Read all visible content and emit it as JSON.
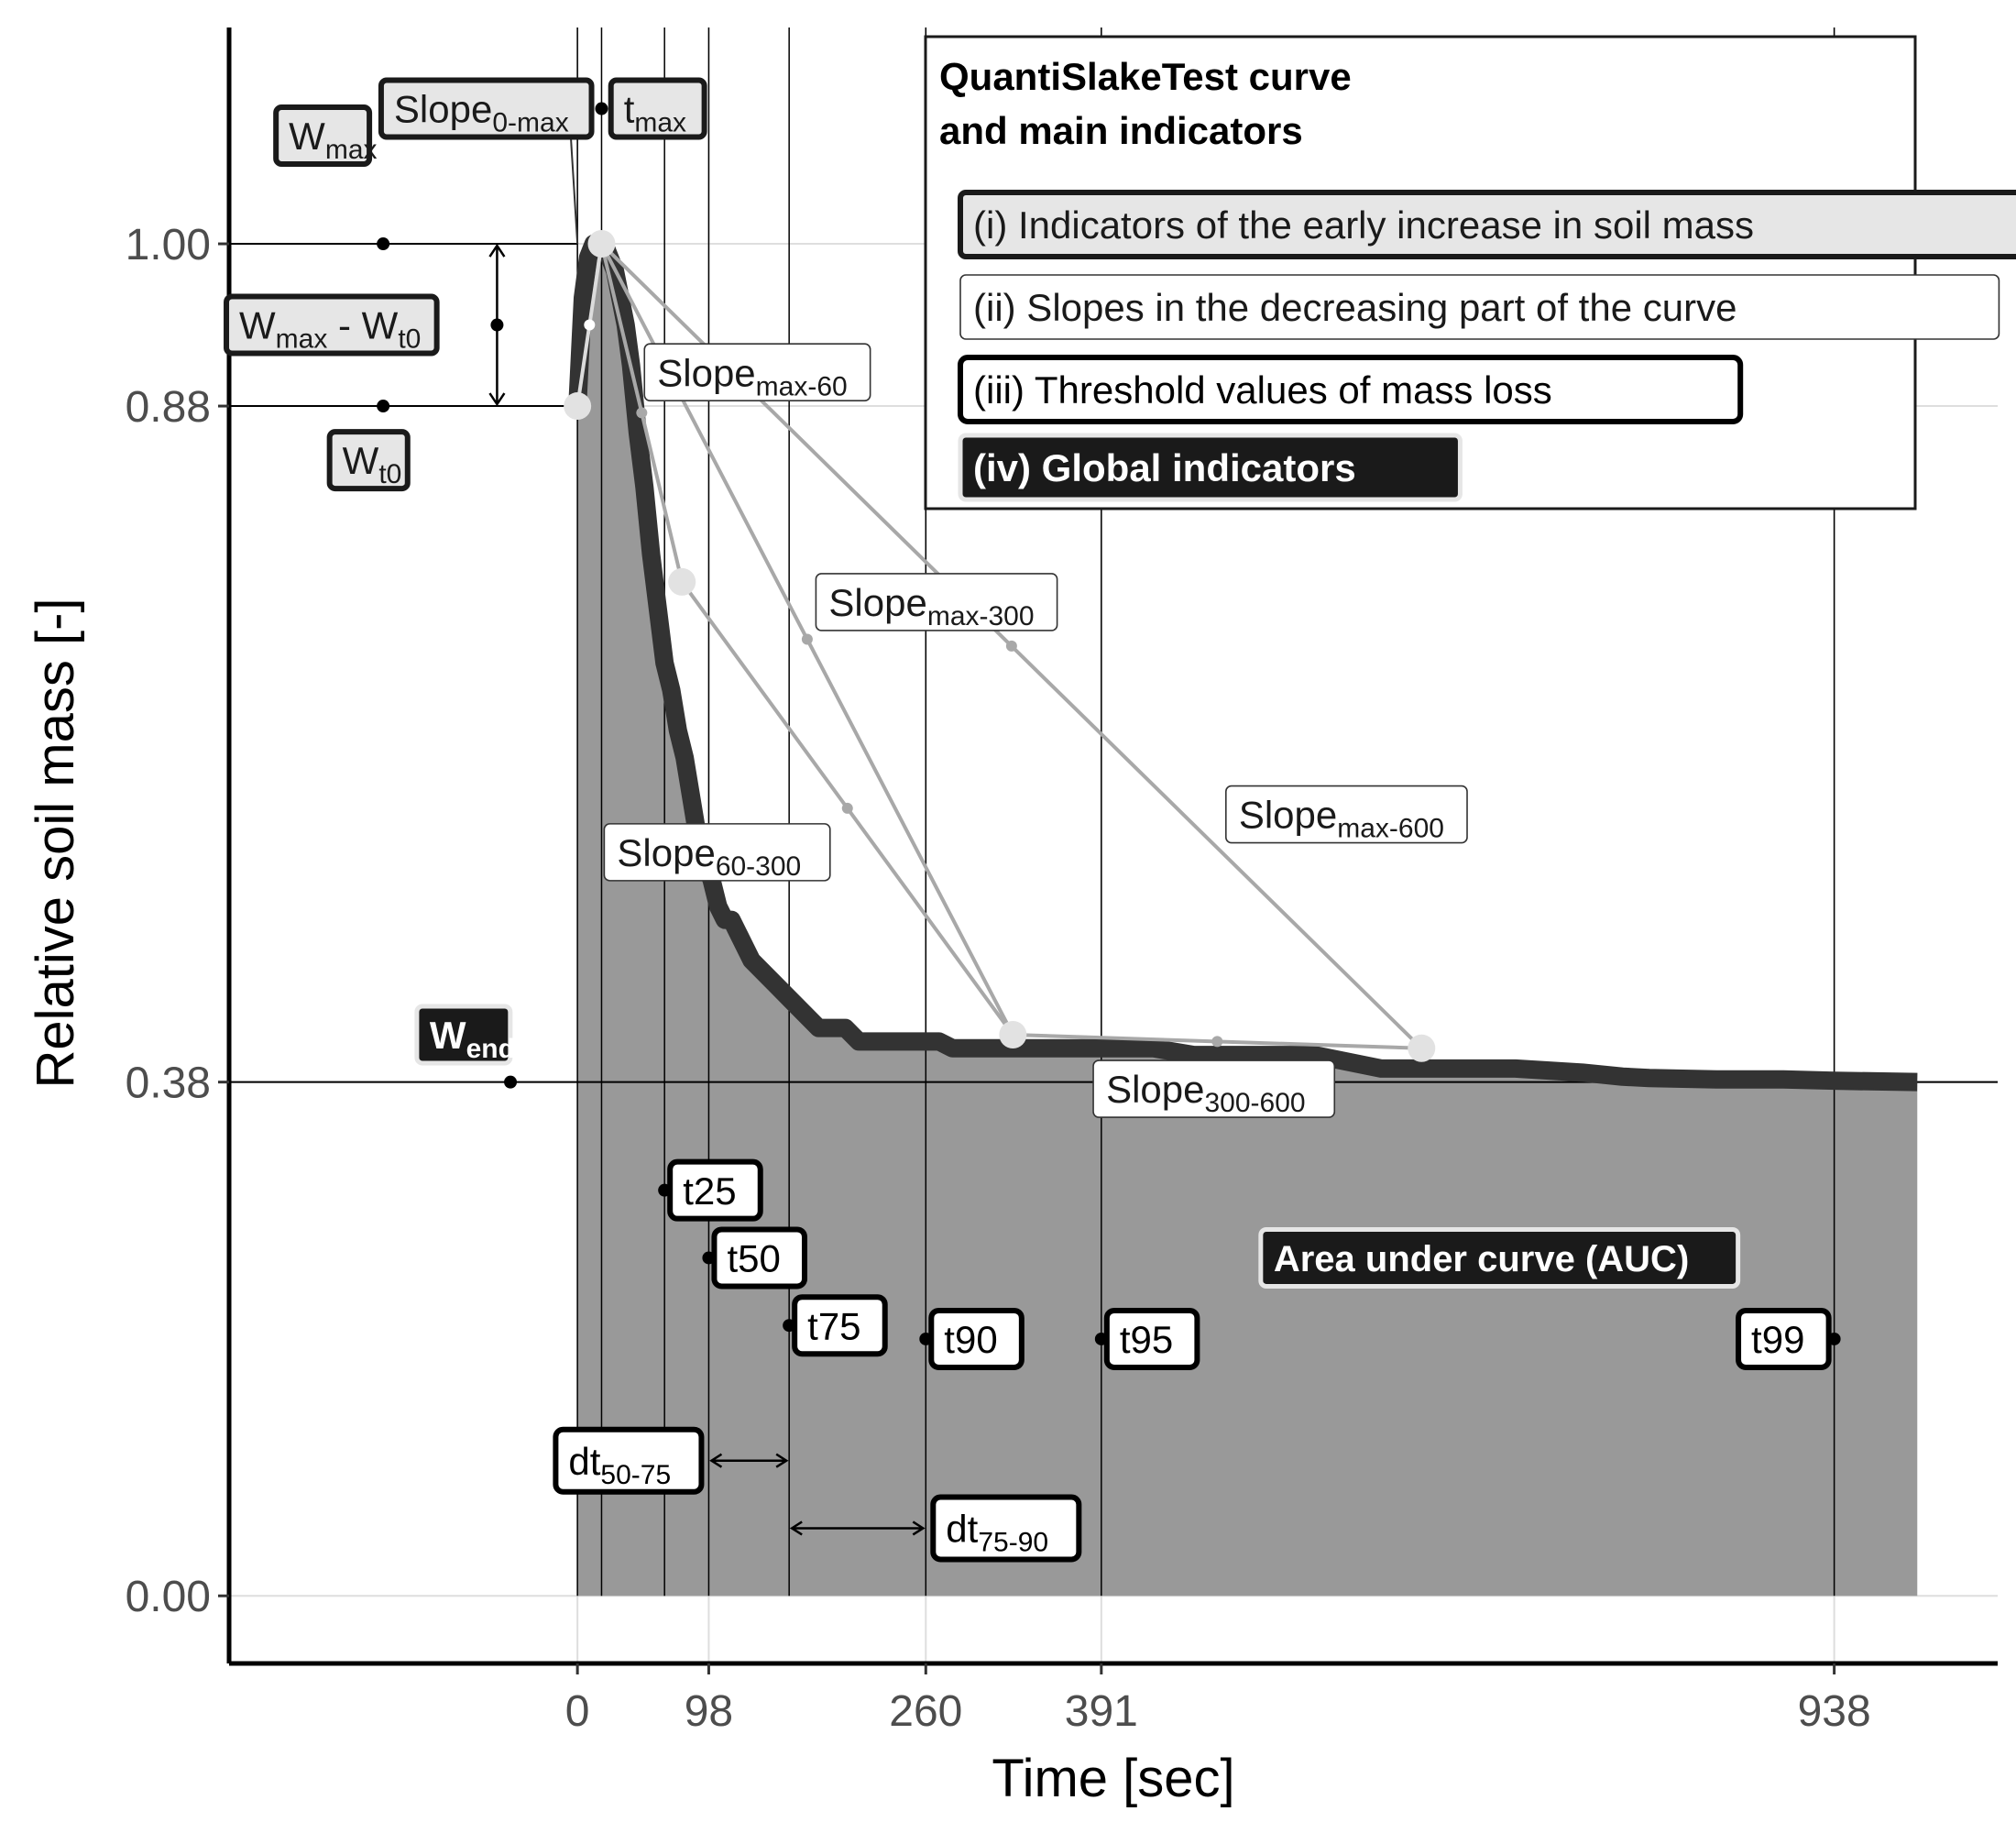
{
  "chart_data": {
    "type": "area",
    "xlabel": "Time [sec]",
    "ylabel": "Relative soil mass [-]",
    "x_ticks": [
      "0",
      "98",
      "260",
      "391",
      "938"
    ],
    "y_ticks": [
      "0.00",
      "0.38",
      "0.88",
      "1.00"
    ],
    "xlim": [
      -260,
      1060
    ],
    "ylim": [
      -0.05,
      1.16
    ],
    "grid": true,
    "curve": {
      "x": [
        0,
        4,
        8,
        12,
        16,
        20,
        24,
        28,
        32,
        36,
        40,
        45,
        50,
        55,
        60,
        65,
        70,
        75,
        80,
        85,
        90,
        95,
        100,
        105,
        110,
        115,
        120,
        125,
        130,
        140,
        150,
        160,
        170,
        180,
        190,
        200,
        210,
        220,
        230,
        240,
        250,
        260,
        270,
        280,
        290,
        300,
        320,
        340,
        360,
        380,
        400,
        430,
        460,
        500,
        550,
        600,
        650,
        700,
        750,
        780,
        800,
        850,
        900,
        938,
        1000
      ],
      "y": [
        0.88,
        0.96,
        0.99,
        1.0,
        1.0,
        1.0,
        0.99,
        0.98,
        0.96,
        0.94,
        0.91,
        0.86,
        0.82,
        0.77,
        0.73,
        0.69,
        0.67,
        0.64,
        0.62,
        0.59,
        0.56,
        0.54,
        0.53,
        0.51,
        0.5,
        0.5,
        0.49,
        0.48,
        0.47,
        0.46,
        0.45,
        0.44,
        0.43,
        0.42,
        0.42,
        0.42,
        0.41,
        0.41,
        0.41,
        0.41,
        0.41,
        0.41,
        0.41,
        0.405,
        0.405,
        0.405,
        0.405,
        0.405,
        0.405,
        0.405,
        0.405,
        0.405,
        0.4,
        0.4,
        0.4,
        0.39,
        0.39,
        0.39,
        0.387,
        0.384,
        0.383,
        0.382,
        0.382,
        0.381,
        0.38
      ]
    },
    "auc_label": "Area under curve (AUC)",
    "legend": {
      "title_lines": [
        "QuantiSlakeTest curve",
        "and main indicators"
      ],
      "entries": [
        "(i) Indicators of the early increase in soil mass",
        "(ii) Slopes in the decreasing part of the curve",
        "(iii) Threshold values of mass loss",
        "(iv) Global indicators"
      ]
    },
    "key_points": [
      {
        "name": "t0",
        "x": 0,
        "y": 0.88
      },
      {
        "name": "tmax",
        "x": 18,
        "y": 1.0
      },
      {
        "name": "t60",
        "x": 78,
        "y": 0.75
      },
      {
        "name": "t300",
        "x": 325,
        "y": 0.415
      },
      {
        "name": "t600",
        "x": 630,
        "y": 0.405
      }
    ],
    "slopes": [
      {
        "from": "t0",
        "to": "tmax",
        "main": "Slope",
        "sub": "0-max"
      },
      {
        "from": "tmax",
        "to": "t60",
        "main": "Slope",
        "sub": "max-60"
      },
      {
        "from": "tmax",
        "to": "t300",
        "main": "Slope",
        "sub": "max-300"
      },
      {
        "from": "tmax",
        "to": "t600",
        "main": "Slope",
        "sub": "max-600"
      },
      {
        "from": "t60",
        "to": "t300",
        "main": "Slope",
        "sub": "60-300"
      },
      {
        "from": "t300",
        "to": "t600",
        "main": "Slope",
        "sub": "300-600"
      }
    ],
    "w_indicators": [
      {
        "main": "W",
        "sub": "max",
        "y": 1.0
      },
      {
        "main": "W",
        "sub": "t0",
        "y": 0.88
      },
      {
        "main": "W",
        "sub": "max",
        "main2": " - W",
        "sub2": "t0"
      },
      {
        "main": "W",
        "sub": "end",
        "y": 0.38
      }
    ],
    "tmax_label": {
      "main": "t",
      "sub": "max",
      "x": 18
    },
    "thresholds": [
      {
        "label": "t25",
        "x": 65,
        "y": 0.3
      },
      {
        "label": "t50",
        "x": 98,
        "y": 0.25
      },
      {
        "label": "t75",
        "x": 158,
        "y": 0.2
      },
      {
        "label": "t90",
        "x": 260,
        "y": 0.19
      },
      {
        "label": "t95",
        "x": 391,
        "y": 0.19
      },
      {
        "label": "t99",
        "x": 938,
        "y": 0.19
      }
    ],
    "dt_labels": [
      {
        "main": "dt",
        "sub": "50-75",
        "from": 98,
        "to": 158
      },
      {
        "main": "dt",
        "sub": "75-90",
        "from": 158,
        "to": 260
      }
    ]
  }
}
